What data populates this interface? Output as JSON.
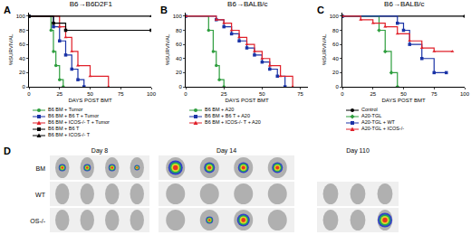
{
  "chart_data": [
    {
      "type": "line",
      "title": "B6→B6D2F1",
      "annotations": [
        "A"
      ],
      "x_label": "DAYS POST BMT",
      "y_label": "%SURVIVAL",
      "xlim": [
        0,
        100
      ],
      "xticks": [
        0,
        25,
        50,
        75,
        100
      ],
      "ylim": [
        0,
        105
      ],
      "yticks": [
        0,
        20,
        40,
        60,
        80,
        100
      ],
      "grid": false,
      "legend": "bottom",
      "series": [
        {
          "name": "B6 BM + Tumor",
          "color": "#2e9e3e",
          "marker": "circle",
          "x": [
            0,
            18,
            20,
            22,
            25,
            28
          ],
          "values": [
            100,
            80,
            50,
            30,
            10,
            0
          ]
        },
        {
          "name": "B6 BM + B6 T + Tumor",
          "color": "#1a33a6",
          "marker": "square",
          "x": [
            0,
            20,
            25,
            30,
            35,
            40,
            45
          ],
          "values": [
            100,
            85,
            65,
            45,
            25,
            10,
            0
          ]
        },
        {
          "name": "B6 BM + ICOS-/- T + Tumor",
          "color": "#e0202a",
          "marker": "triangle",
          "x": [
            0,
            25,
            30,
            35,
            40,
            50,
            65
          ],
          "values": [
            100,
            85,
            70,
            50,
            30,
            15,
            0
          ]
        },
        {
          "name": "B6 BM + B6 T",
          "color": "#000000",
          "marker": "square",
          "x": [
            0,
            20,
            30,
            100
          ],
          "values": [
            100,
            90,
            80,
            80
          ]
        },
        {
          "name": "B6 BM + ICOS-/- T",
          "color": "#000000",
          "marker": "triangle",
          "x": [
            0,
            100
          ],
          "values": [
            100,
            100
          ]
        }
      ]
    },
    {
      "type": "line",
      "title": "B6→BALB/c",
      "annotations": [
        "B"
      ],
      "x_label": "DAYS POST BMT",
      "y_label": "%SURVIVAL",
      "xlim": [
        0,
        80
      ],
      "xticks": [
        0,
        25,
        50,
        75
      ],
      "ylim": [
        0,
        105
      ],
      "yticks": [
        0,
        20,
        40,
        60,
        80,
        100
      ],
      "grid": false,
      "legend": "bottom",
      "series": [
        {
          "name": "B6 BM + A20",
          "color": "#2e9e3e",
          "marker": "circle",
          "x": [
            0,
            15,
            18,
            20,
            22,
            25
          ],
          "values": [
            100,
            80,
            50,
            30,
            10,
            0
          ]
        },
        {
          "name": "B6 BM + B6 T + A20",
          "color": "#1a33a6",
          "marker": "square",
          "x": [
            0,
            20,
            25,
            30,
            35,
            40,
            45,
            50,
            55,
            60,
            65
          ],
          "values": [
            100,
            95,
            85,
            75,
            65,
            55,
            45,
            35,
            25,
            15,
            0
          ]
        },
        {
          "name": "B6 BM + ICOS-/- T + A20",
          "color": "#e0202a",
          "marker": "triangle",
          "x": [
            0,
            20,
            25,
            30,
            35,
            40,
            45,
            50,
            55,
            62,
            70
          ],
          "values": [
            100,
            95,
            90,
            80,
            70,
            60,
            50,
            40,
            30,
            15,
            0
          ]
        }
      ]
    },
    {
      "type": "line",
      "title": "B6→BALB/c",
      "annotations": [
        "C"
      ],
      "x_label": "DAYS POST BMT",
      "y_label": "%SURVIVAL",
      "xlim": [
        0,
        100
      ],
      "xticks": [
        0,
        25,
        50,
        75,
        100
      ],
      "ylim": [
        0,
        105
      ],
      "yticks": [
        0,
        20,
        40,
        60,
        80,
        100
      ],
      "grid": false,
      "legend": "bottom",
      "series": [
        {
          "name": "Control",
          "color": "#000000",
          "marker": "circle",
          "x": [
            0,
            100
          ],
          "values": [
            100,
            100
          ]
        },
        {
          "name": "A20-TGL",
          "color": "#2e9e3e",
          "marker": "diamond",
          "x": [
            0,
            30,
            35,
            40,
            45
          ],
          "values": [
            100,
            80,
            50,
            20,
            0
          ]
        },
        {
          "name": "A20-TGL + WT",
          "color": "#1a33a6",
          "marker": "square",
          "x": [
            0,
            45,
            50,
            55,
            65,
            75,
            85
          ],
          "values": [
            100,
            90,
            80,
            60,
            40,
            20,
            20
          ]
        },
        {
          "name": "A20-TGL + ICOS-/-",
          "color": "#e0202a",
          "marker": "triangle",
          "x": [
            0,
            15,
            25,
            35,
            45,
            55,
            65,
            75,
            90
          ],
          "values": [
            100,
            95,
            90,
            85,
            75,
            65,
            55,
            50,
            50
          ]
        }
      ]
    }
  ],
  "panel_d": {
    "label": "D",
    "columns": [
      "Day 8",
      "Day 14",
      "Day 110"
    ],
    "rows": [
      "BM",
      "WT",
      "OS-/-"
    ]
  }
}
